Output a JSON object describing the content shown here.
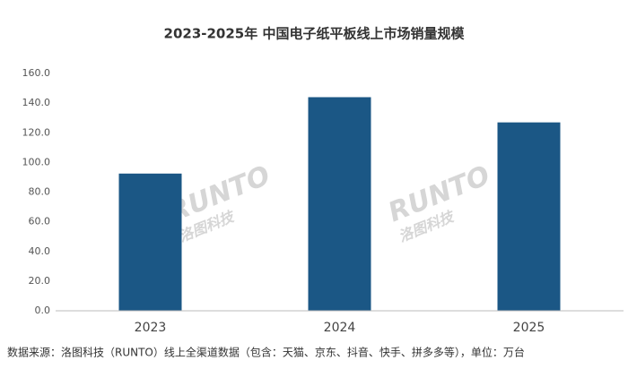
{
  "chart_data": {
    "type": "bar",
    "title": "2023-2025年 中国电子纸平板线上市场销量规模",
    "categories": [
      "2023",
      "2024",
      "2025"
    ],
    "values": [
      92.5,
      144,
      127
    ],
    "color": "#1b5785",
    "ylim": [
      0,
      160
    ],
    "yticks": [
      {
        "value": 0,
        "label": "0.0"
      },
      {
        "value": 20,
        "label": "20.0"
      },
      {
        "value": 40,
        "label": "40.0"
      },
      {
        "value": 60,
        "label": "60.0"
      },
      {
        "value": 80,
        "label": "80.0"
      },
      {
        "value": 100,
        "label": "100.0"
      },
      {
        "value": 120,
        "label": "120.0"
      },
      {
        "value": 140,
        "label": "140.0"
      },
      {
        "value": 160,
        "label": "160.0"
      }
    ],
    "grid": false,
    "watermark": [
      "RUNTO",
      "洛图科技"
    ],
    "source": "数据来源：洛图科技（RUNTO）线上全渠道数据（包含：天猫、京东、抖音、快手、拼多多等），单位：万台"
  }
}
